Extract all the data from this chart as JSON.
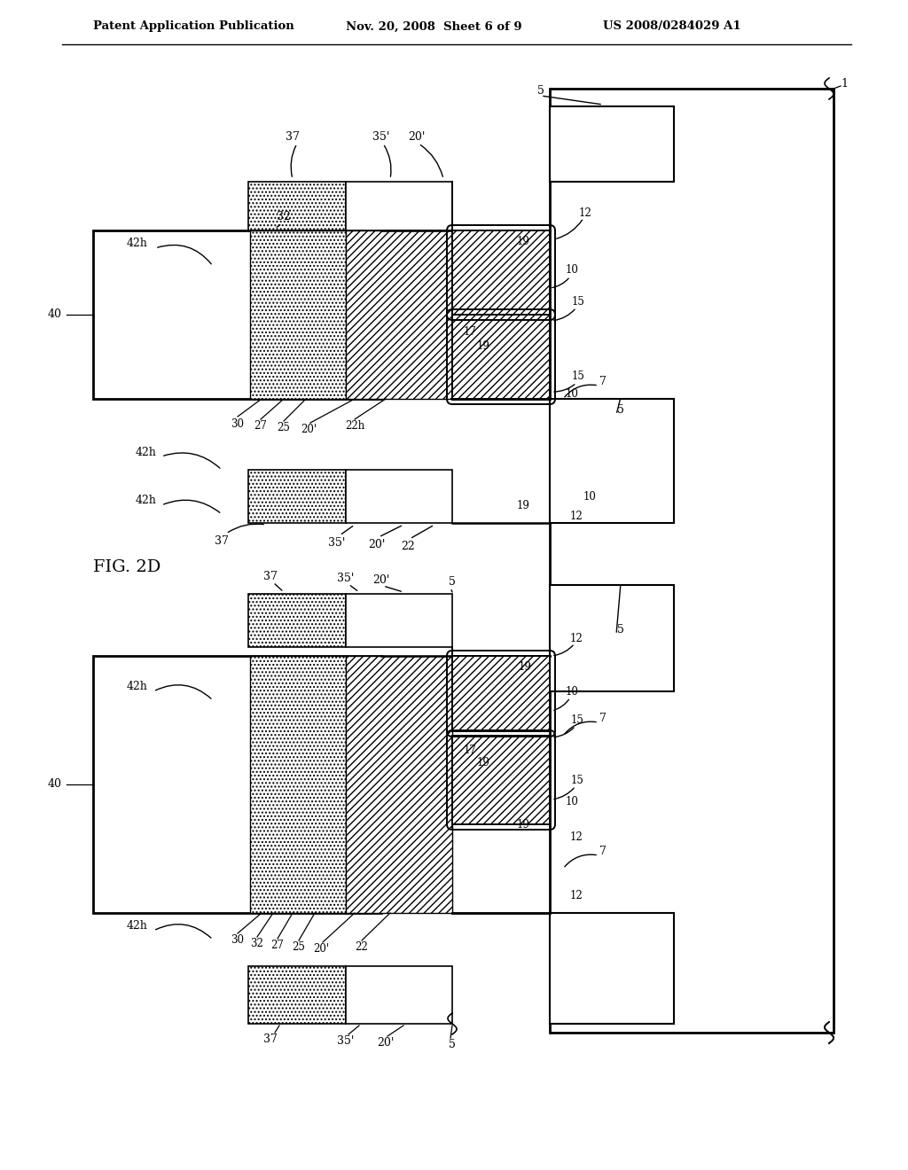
{
  "header_left": "Patent Application Publication",
  "header_mid": "Nov. 20, 2008  Sheet 6 of 9",
  "header_right": "US 2008/0284029 A1",
  "fig_label": "FIG. 2D",
  "bg": "#ffffff"
}
